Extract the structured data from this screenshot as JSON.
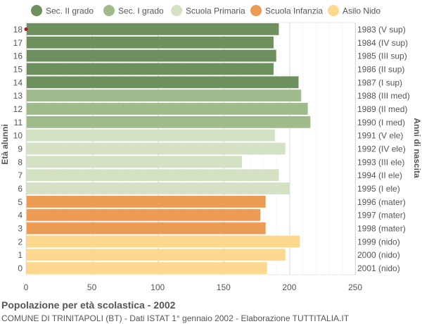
{
  "chart_data": {
    "type": "bar",
    "orientation": "horizontal",
    "title": "Popolazione per età scolastica - 2002",
    "subtitle": "COMUNE DI TRINITAPOLI (BT) - Dati ISTAT 1° gennaio 2002 - Elaborazione TUTTITALIA.IT",
    "ylabel_left": "Età alunni",
    "ylabel_right": "Anni di nascita",
    "xlim": [
      0,
      250
    ],
    "xticks": [
      0,
      50,
      100,
      150,
      200,
      250
    ],
    "grid": true,
    "legend_position": "top",
    "legend": [
      {
        "label": "Sec. II grado",
        "color": "#6e8f5e"
      },
      {
        "label": "Sec. I grado",
        "color": "#9fbb8c"
      },
      {
        "label": "Scuola Primaria",
        "color": "#d5e1c5"
      },
      {
        "label": "Scuola Infanzia",
        "color": "#eb9b53"
      },
      {
        "label": "Asilo Nido",
        "color": "#fcd98f"
      }
    ],
    "categories": [
      "18",
      "17",
      "16",
      "15",
      "14",
      "13",
      "12",
      "11",
      "10",
      "9",
      "8",
      "7",
      "6",
      "5",
      "4",
      "3",
      "2",
      "1",
      "0"
    ],
    "birth_years": [
      "1983 (V sup)",
      "1984 (IV sup)",
      "1985 (III sup)",
      "1986 (II sup)",
      "1987 (I sup)",
      "1988 (III med)",
      "1989 (II med)",
      "1990 (I med)",
      "1991 (V ele)",
      "1992 (IV ele)",
      "1993 (III ele)",
      "1994 (II ele)",
      "1995 (I ele)",
      "1996 (mater)",
      "1997 (mater)",
      "1998 (mater)",
      "1999 (nido)",
      "2000 (nido)",
      "2001 (nido)"
    ],
    "values": [
      192,
      188,
      190,
      188,
      207,
      209,
      214,
      216,
      189,
      197,
      164,
      192,
      200,
      182,
      178,
      182,
      208,
      197,
      183
    ],
    "groups": [
      0,
      0,
      0,
      0,
      0,
      1,
      1,
      1,
      2,
      2,
      2,
      2,
      2,
      3,
      3,
      3,
      4,
      4,
      4
    ]
  }
}
